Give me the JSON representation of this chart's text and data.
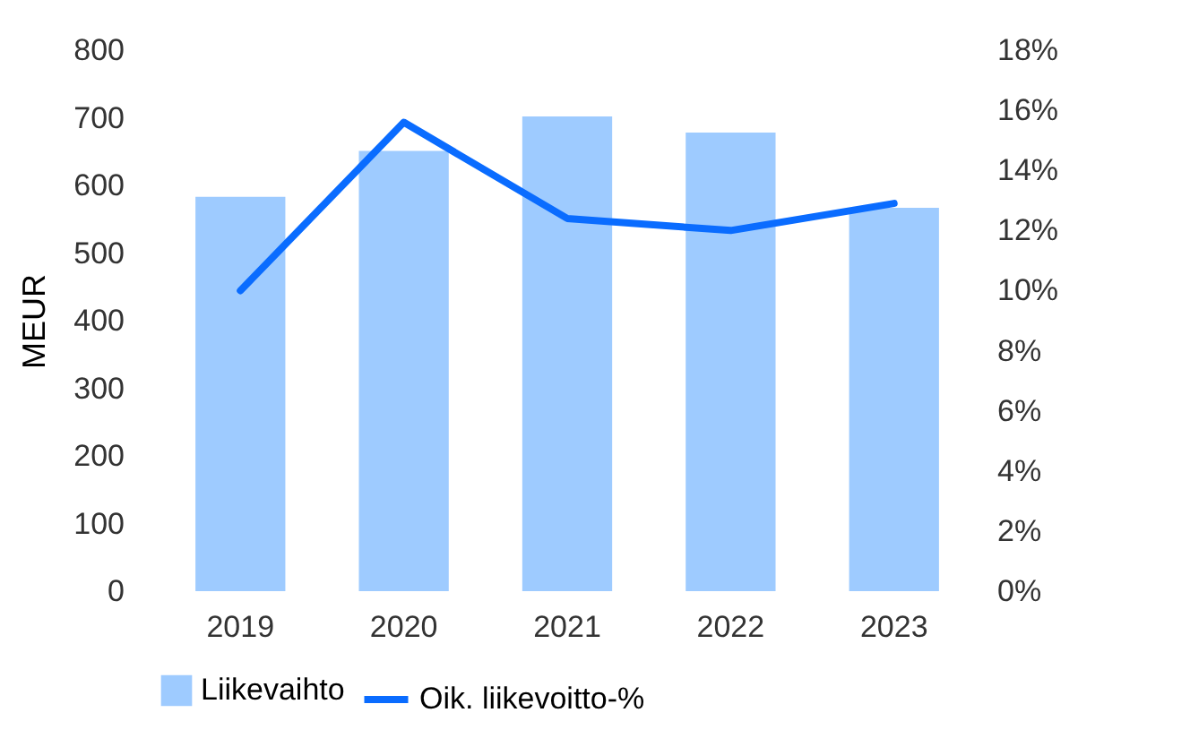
{
  "chart_data": {
    "type": "bar",
    "categories": [
      "2019",
      "2020",
      "2021",
      "2022",
      "2023"
    ],
    "series": [
      {
        "name": "Liikevaihto",
        "color": "#9ecbff",
        "values": [
          583,
          651,
          702,
          678,
          567
        ]
      },
      {
        "name": "Oik. liikevoitto-%",
        "type": "line",
        "axis": "y2",
        "color": "#0a6cff",
        "values": [
          10.0,
          15.6,
          12.4,
          12.0,
          12.9
        ]
      }
    ],
    "ylabel": "MEUR",
    "ylim": [
      0,
      800
    ],
    "yticks": [
      0,
      100,
      200,
      300,
      400,
      500,
      600,
      700,
      800
    ],
    "y2lim": [
      0,
      18
    ],
    "y2ticks": [
      {
        "value": 0,
        "label": "0%"
      },
      {
        "value": 2,
        "label": "2%"
      },
      {
        "value": 4,
        "label": "4%"
      },
      {
        "value": 6,
        "label": "6%"
      },
      {
        "value": 8,
        "label": "8%"
      },
      {
        "value": 10,
        "label": "10%"
      },
      {
        "value": 12,
        "label": "12%"
      },
      {
        "value": 14,
        "label": "14%"
      },
      {
        "value": 16,
        "label": "16%"
      },
      {
        "value": 18,
        "label": "18%"
      }
    ],
    "grid": false,
    "legend": "bottom"
  }
}
